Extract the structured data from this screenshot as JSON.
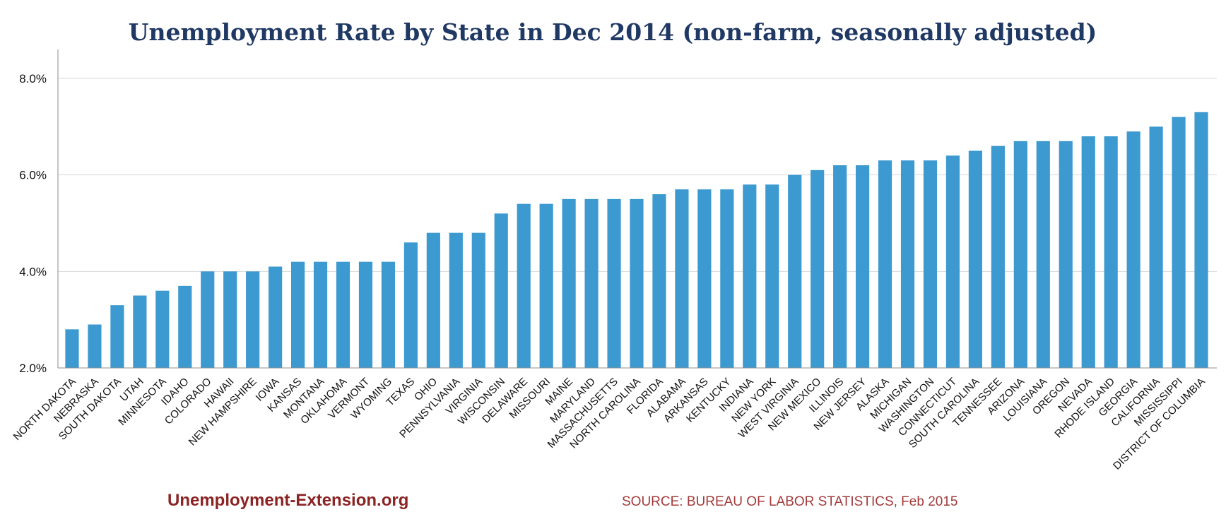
{
  "colors": {
    "bar": "#3c9ad0",
    "grid": "#d9d9d9",
    "axis": "#8c8c8c",
    "title": "#1f3864",
    "footer": "#8b2323"
  },
  "footer": {
    "site": "Unemployment-Extension.org",
    "source": "SOURCE: BUREAU OF LABOR STATISTICS, Feb 2015"
  },
  "chart_data": {
    "type": "bar",
    "title": "Unemployment Rate by State in Dec 2014 (non-farm, seasonally adjusted)",
    "xlabel": "",
    "ylabel": "",
    "ylim": [
      2.0,
      8.5
    ],
    "yticks": [
      2.0,
      4.0,
      6.0,
      8.0
    ],
    "ytick_labels": [
      "2.0%",
      "4.0%",
      "6.0%",
      "8.0%"
    ],
    "grid": true,
    "categories": [
      "NORTH DAKOTA",
      "NEBRASKA",
      "SOUTH DAKOTA",
      "UTAH",
      "MINNESOTA",
      "IDAHO",
      "COLORADO",
      "HAWAII",
      "NEW HAMPSHIRE",
      "IOWA",
      "KANSAS",
      "MONTANA",
      "OKLAHOMA",
      "VERMONT",
      "WYOMING",
      "TEXAS",
      "OHIO",
      "PENNSYLVANIA",
      "VIRGINIA",
      "WISCONSIN",
      "DELAWARE",
      "MISSOURI",
      "MAINE",
      "MARYLAND",
      "MASSACHUSETTS",
      "NORTH CAROLINA",
      "FLORIDA",
      "ALABAMA",
      "ARKANSAS",
      "KENTUCKY",
      "INDIANA",
      "NEW YORK",
      "WEST VIRGINIA",
      "NEW MEXICO",
      "ILLINOIS",
      "NEW JERSEY",
      "ALASKA",
      "MICHIGAN",
      "WASHINGTON",
      "CONNECTICUT",
      "SOUTH CAROLINA",
      "TENNESSEE",
      "ARIZONA",
      "LOUISIANA",
      "OREGON",
      "NEVADA",
      "RHODE ISLAND",
      "GEORGIA",
      "CALIFORNIA",
      "MISSISSIPPI",
      "DISTRICT OF COLUMBIA"
    ],
    "values": [
      2.8,
      2.9,
      3.3,
      3.5,
      3.6,
      3.7,
      4.0,
      4.0,
      4.0,
      4.1,
      4.2,
      4.2,
      4.2,
      4.2,
      4.2,
      4.6,
      4.8,
      4.8,
      4.8,
      5.2,
      5.4,
      5.4,
      5.5,
      5.5,
      5.5,
      5.5,
      5.6,
      5.7,
      5.7,
      5.7,
      5.8,
      5.8,
      6.0,
      6.1,
      6.2,
      6.2,
      6.3,
      6.3,
      6.3,
      6.4,
      6.5,
      6.6,
      6.7,
      6.7,
      6.7,
      6.8,
      6.8,
      6.9,
      7.0,
      7.2,
      7.3
    ]
  }
}
